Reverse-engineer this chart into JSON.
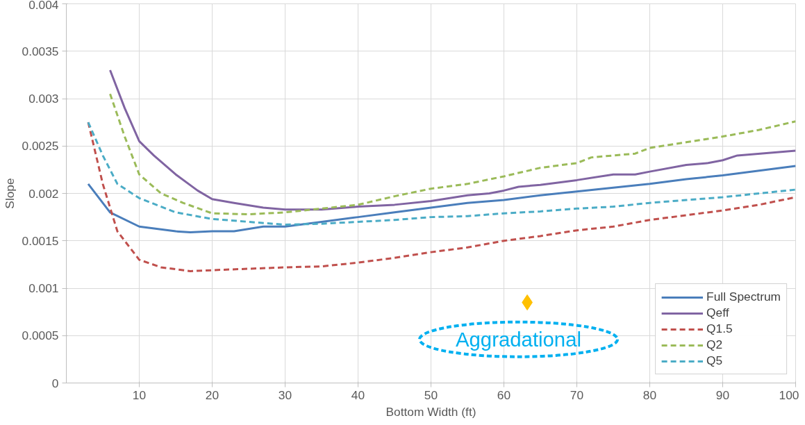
{
  "chart_data": {
    "type": "line",
    "xlabel": "Bottom Width (ft)",
    "ylabel": "Slope",
    "xlim": [
      0,
      100
    ],
    "xticks": [
      10,
      20,
      30,
      40,
      50,
      60,
      70,
      80,
      90,
      100
    ],
    "ylim": [
      0,
      0.004
    ],
    "yticks": [
      0,
      0.0005,
      0.001,
      0.0015,
      0.002,
      0.0025,
      0.003,
      0.0035,
      0.004
    ],
    "grid": true,
    "legend": "bottom right",
    "series": [
      {
        "name": "Full Spectrum",
        "color": "#4a7ebb",
        "line_style": "solid",
        "x": [
          3,
          6,
          10,
          15,
          17,
          20,
          23,
          27,
          30,
          35,
          40,
          45,
          50,
          55,
          60,
          65,
          70,
          75,
          80,
          85,
          90,
          95,
          100
        ],
        "values": [
          0.0021,
          0.0018,
          0.00165,
          0.0016,
          0.00159,
          0.0016,
          0.0016,
          0.00165,
          0.00165,
          0.0017,
          0.00175,
          0.0018,
          0.00185,
          0.0019,
          0.00193,
          0.00198,
          0.00202,
          0.00206,
          0.0021,
          0.00215,
          0.00219,
          0.00224,
          0.00229
        ]
      },
      {
        "name": "Qeff",
        "color": "#8064a2",
        "line_style": "solid",
        "x": [
          6,
          8,
          10,
          12,
          15,
          18,
          20,
          23,
          27,
          30,
          35,
          40,
          45,
          50,
          55,
          58,
          60,
          62,
          65,
          70,
          75,
          78,
          80,
          85,
          88,
          90,
          92,
          100
        ],
        "values": [
          0.0033,
          0.0029,
          0.00255,
          0.0024,
          0.0022,
          0.00203,
          0.00194,
          0.0019,
          0.00185,
          0.00183,
          0.00183,
          0.00186,
          0.00188,
          0.00192,
          0.00198,
          0.002,
          0.00203,
          0.00207,
          0.00209,
          0.00214,
          0.0022,
          0.0022,
          0.00223,
          0.0023,
          0.00232,
          0.00235,
          0.0024,
          0.00245
        ]
      },
      {
        "name": "Q1.5",
        "color": "#c0504d",
        "line_style": "dashed",
        "x": [
          3,
          5,
          7,
          10,
          13,
          17,
          20,
          30,
          35,
          40,
          45,
          50,
          55,
          60,
          65,
          70,
          75,
          80,
          85,
          90,
          95,
          100
        ],
        "values": [
          0.00275,
          0.0021,
          0.0016,
          0.0013,
          0.00122,
          0.00118,
          0.00119,
          0.00122,
          0.00123,
          0.00127,
          0.00132,
          0.00138,
          0.00143,
          0.0015,
          0.00155,
          0.00161,
          0.00165,
          0.00172,
          0.00177,
          0.00182,
          0.00188,
          0.00196
        ]
      },
      {
        "name": "Q2",
        "color": "#9bbb59",
        "line_style": "dashed",
        "x": [
          6,
          8,
          10,
          13,
          16,
          20,
          25,
          30,
          35,
          40,
          45,
          50,
          55,
          60,
          65,
          70,
          72,
          78,
          80,
          85,
          90,
          95,
          100
        ],
        "values": [
          0.00305,
          0.0026,
          0.0022,
          0.002,
          0.0019,
          0.00179,
          0.00178,
          0.0018,
          0.00184,
          0.00188,
          0.00197,
          0.00205,
          0.0021,
          0.00218,
          0.00227,
          0.00232,
          0.00238,
          0.00242,
          0.00248,
          0.00254,
          0.0026,
          0.00267,
          0.00276
        ]
      },
      {
        "name": "Q5",
        "color": "#4bacc6",
        "line_style": "dashed",
        "x": [
          3,
          5,
          7,
          10,
          15,
          20,
          25,
          30,
          35,
          40,
          45,
          50,
          55,
          60,
          65,
          70,
          75,
          80,
          85,
          90,
          95,
          100
        ],
        "values": [
          0.00275,
          0.0024,
          0.0021,
          0.00195,
          0.0018,
          0.00173,
          0.0017,
          0.00167,
          0.00168,
          0.0017,
          0.00172,
          0.00175,
          0.00176,
          0.00179,
          0.00181,
          0.00184,
          0.00186,
          0.0019,
          0.00193,
          0.00196,
          0.002,
          0.00204
        ]
      },
      {
        "type": "scatter",
        "marker": "diamond",
        "color": "#ffc000",
        "x": [
          63.2
        ],
        "values": [
          0.00085
        ]
      }
    ],
    "annotations": [
      "Aggradational"
    ]
  }
}
